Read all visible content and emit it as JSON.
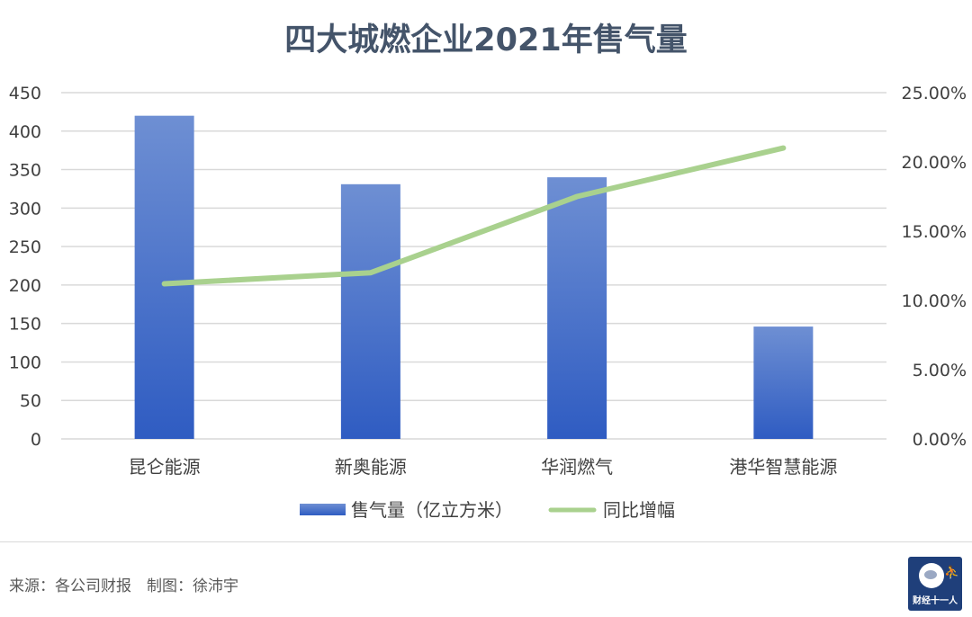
{
  "chart_data": {
    "type": "bar",
    "title": "四大城燃企业2021年售气量",
    "categories": [
      "昆仑能源",
      "新奥能源",
      "华润燃气",
      "港华智慧能源"
    ],
    "series": [
      {
        "name": "售气量（亿立方米）",
        "type": "bar",
        "axis": "left",
        "values": [
          420,
          331,
          340,
          146
        ]
      },
      {
        "name": "同比增幅",
        "type": "line",
        "axis": "right",
        "values": [
          11.2,
          12.0,
          17.5,
          21.0
        ]
      }
    ],
    "y_left": {
      "min": 0,
      "max": 450,
      "ticks": [
        "0",
        "50",
        "100",
        "150",
        "200",
        "250",
        "300",
        "350",
        "400",
        "450"
      ]
    },
    "y_right": {
      "min": 0,
      "max": 25,
      "ticks": [
        "0.00%",
        "5.00%",
        "10.00%",
        "15.00%",
        "20.00%",
        "25.00%"
      ]
    },
    "grid": true,
    "legend_position": "bottom",
    "colors": {
      "bar_top": "#6e8fd3",
      "bar_bottom": "#2f5cc2",
      "line": "#a9d18e",
      "grid": "#d9d9d9",
      "title": "#44546a"
    }
  },
  "footer": {
    "source": "来源：各公司财报　制图：徐沛宇",
    "logo_text": "财经十一人",
    "logo_icon": "globe-runner-icon"
  }
}
